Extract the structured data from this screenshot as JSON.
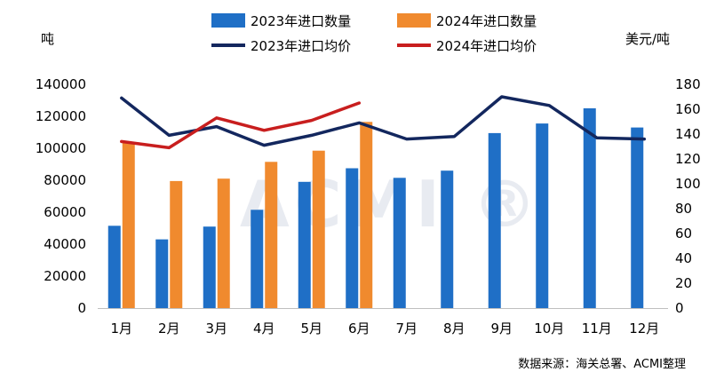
{
  "chart_data": {
    "type": "bar+line",
    "categories": [
      "1月",
      "2月",
      "3月",
      "4月",
      "5月",
      "6月",
      "7月",
      "8月",
      "9月",
      "10月",
      "11月",
      "12月"
    ],
    "left_unit": "吨",
    "right_unit": "美元/吨",
    "left_axis": {
      "min": 0,
      "max": 140000,
      "step": 20000,
      "ticks": [
        "0",
        "20000",
        "40000",
        "60000",
        "80000",
        "100000",
        "120000",
        "140000"
      ]
    },
    "right_axis": {
      "min": 0,
      "max": 180,
      "step": 20,
      "ticks": [
        "0",
        "20",
        "40",
        "60",
        "80",
        "100",
        "120",
        "140",
        "160",
        "180"
      ]
    },
    "series": [
      {
        "name": "2023年进口数量",
        "type": "bar",
        "axis": "left",
        "color": "#1f6fc6",
        "values": [
          51500,
          43000,
          51000,
          61500,
          79000,
          87500,
          81500,
          86000,
          109500,
          115500,
          125000,
          113000
        ]
      },
      {
        "name": "2024年进口数量",
        "type": "bar",
        "axis": "left",
        "color": "#f08a2e",
        "values": [
          103500,
          79500,
          81000,
          91500,
          98500,
          116500,
          null,
          null,
          null,
          null,
          null,
          null
        ]
      },
      {
        "name": "2023年进口均价",
        "type": "line",
        "axis": "right",
        "color": "#13275e",
        "values": [
          169,
          139,
          146,
          131,
          139,
          149,
          136,
          138,
          170,
          163,
          137,
          136
        ]
      },
      {
        "name": "2024年进口均价",
        "type": "line",
        "axis": "right",
        "color": "#c81e1e",
        "values": [
          134,
          129,
          153,
          143,
          151,
          165,
          null,
          null,
          null,
          null,
          null,
          null
        ]
      }
    ],
    "legend_position": "top-center"
  },
  "watermark": "ACMI ®",
  "source": "数据来源：海关总署、ACMI整理"
}
